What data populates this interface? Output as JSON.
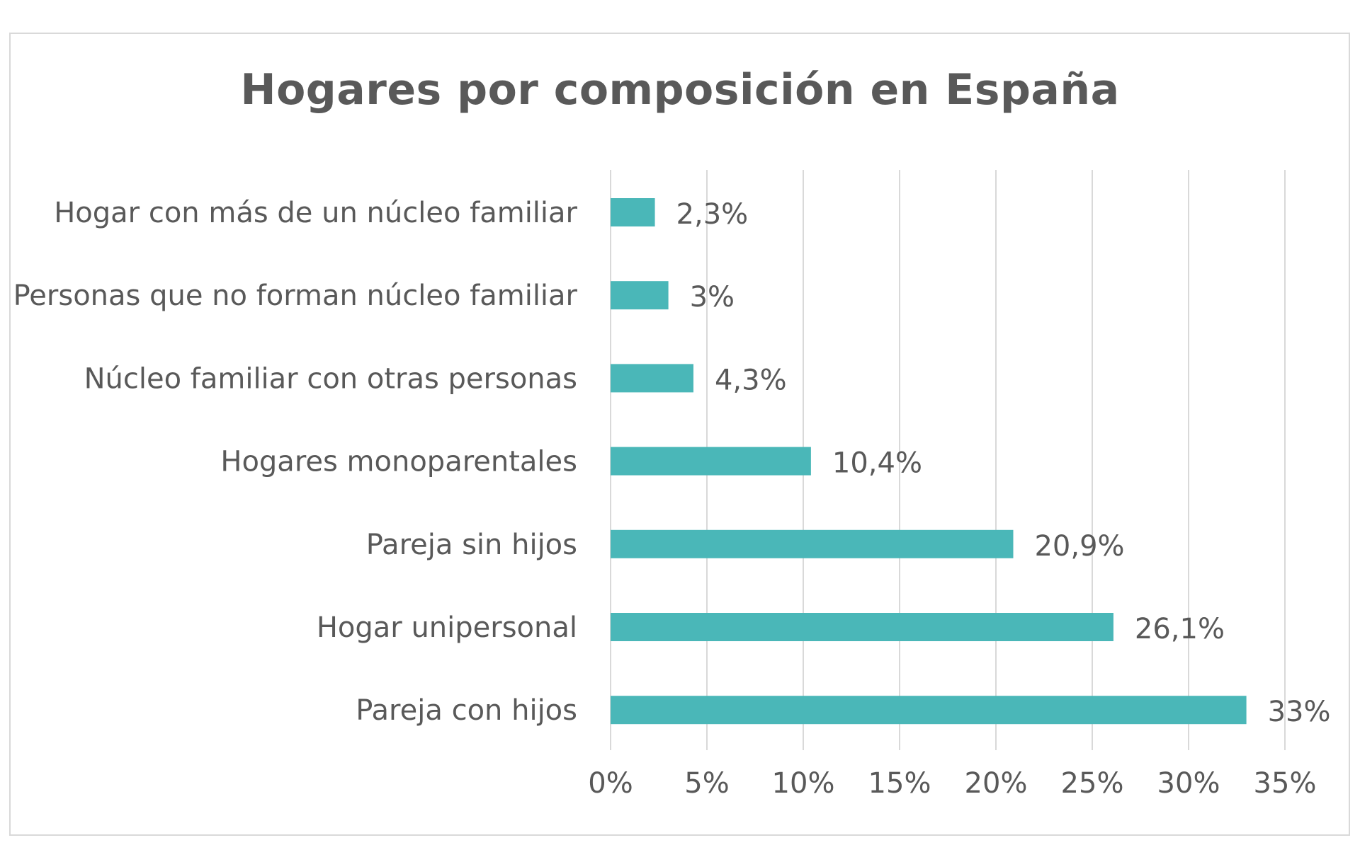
{
  "chart_data": {
    "type": "bar",
    "orientation": "horizontal",
    "title": "Hogares por composición en España",
    "categories": [
      "Hogar con más de un núcleo familiar",
      "Personas que no forman núcleo familiar",
      "Núcleo familiar con otras personas",
      "Hogares monoparentales",
      "Pareja sin hijos",
      "Hogar unipersonal",
      "Pareja con hijos"
    ],
    "values": [
      2.3,
      3,
      4.3,
      10.4,
      20.9,
      26.1,
      33
    ],
    "value_labels": [
      "2,3%",
      "3%",
      "4,3%",
      "10,4%",
      "20,9%",
      "26,1%",
      "33%"
    ],
    "xlim": [
      0,
      35
    ],
    "ticks": [
      0,
      5,
      10,
      15,
      20,
      25,
      30,
      35
    ],
    "tick_labels": [
      "0%",
      "5%",
      "10%",
      "15%",
      "20%",
      "25%",
      "30%",
      "35%"
    ],
    "grid": "vertical",
    "legend": "none",
    "bar_color": "#4ab7b8",
    "grid_color": "#d9d9d9",
    "text_color": "#595959"
  }
}
